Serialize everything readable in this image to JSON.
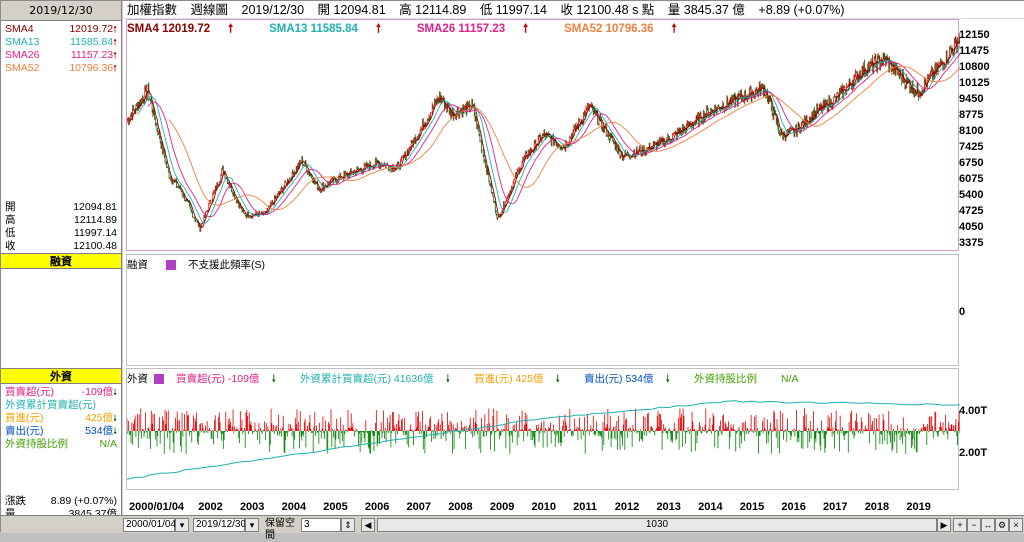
{
  "left_panel": {
    "date": "2019/12/30",
    "sma": [
      {
        "name": "SMA4",
        "value": "12019.72",
        "color": "#8b0000"
      },
      {
        "name": "SMA13",
        "value": "11585.84",
        "color": "#20b0b0"
      },
      {
        "name": "SMA26",
        "value": "11157.23",
        "color": "#e0208a"
      },
      {
        "name": "SMA52",
        "value": "10796.36",
        "color": "#f08040"
      }
    ],
    "ohlc": [
      {
        "label": "開",
        "value": "12094.81"
      },
      {
        "label": "高",
        "value": "12114.89"
      },
      {
        "label": "低",
        "value": "11997.14"
      },
      {
        "label": "收",
        "value": "12100.48"
      }
    ],
    "margin_title": "融資",
    "foreign_title": "外資",
    "foreign_rows": [
      {
        "label": "買賣超(元)",
        "value": "-109億",
        "color": "#e0208a",
        "dir": "dn"
      },
      {
        "label": "外資累計買賣超(元)",
        "value": "",
        "color": "#20b0b0",
        "dir": ""
      },
      {
        "label": "買進(元)",
        "value": "425億",
        "color": "#f0a000",
        "dir": "dn"
      },
      {
        "label": "賣出(元)",
        "value": "534億",
        "color": "#0050c0",
        "dir": "dn"
      },
      {
        "label": "外資持股比例",
        "value": "N/A",
        "color": "#40a000",
        "dir": ""
      }
    ],
    "change_label": "漲跌",
    "change_value": "8.89 (+0.07%)",
    "volume_label": "量",
    "volume_value": "3845.37億"
  },
  "topbar": {
    "index_name": "加權指數",
    "period": "週線圖",
    "date": "2019/12/30",
    "open": "開 12094.81",
    "high": "高 12114.89",
    "low": "低 11997.14",
    "close": "收 12100.48 s 點",
    "volume": "量 3845.37 億",
    "change": "+8.89 (+0.07%)"
  },
  "main_legend": [
    {
      "text": "SMA4 12019.72",
      "color": "#8b0000"
    },
    {
      "text": "SMA13 11585.84",
      "color": "#20b0b0"
    },
    {
      "text": "SMA26 11157.23",
      "color": "#e0208a"
    },
    {
      "text": "SMA52 10796.36",
      "color": "#f08040"
    }
  ],
  "price_ticks": [
    "12150",
    "11475",
    "10800",
    "10125",
    "9450",
    "8775",
    "8100",
    "7425",
    "6750",
    "6075",
    "5400",
    "4725",
    "4050",
    "3375"
  ],
  "margin_pane": {
    "label": "融資",
    "note": "不支援此頻率(S)",
    "zero": "0"
  },
  "foreign_pane": {
    "label": "外資",
    "items": [
      {
        "text": "買賣超(元) -109億",
        "color": "#e0208a",
        "dir": "dn"
      },
      {
        "text": "外資累計買賣超(元) 41636億",
        "color": "#20b0b0",
        "dir": "dn"
      },
      {
        "text": "買進(元) 425億",
        "color": "#f0a000",
        "dir": "dn"
      },
      {
        "text": "賣出(元) 534億",
        "color": "#0050c0",
        "dir": "dn"
      },
      {
        "text": "外資持股比例",
        "color": "#40a000",
        "dir": ""
      },
      {
        "text": "N/A",
        "color": "#40a000",
        "dir": ""
      }
    ],
    "ticks": [
      "4.00T",
      "2.00T"
    ]
  },
  "x_ticks": [
    "2000/01/04",
    "2002",
    "2003",
    "2004",
    "2005",
    "2006",
    "2007",
    "2008",
    "2009",
    "2010",
    "2011",
    "2012",
    "2013",
    "2014",
    "2015",
    "2016",
    "2017",
    "2018",
    "2019"
  ],
  "statusbar": {
    "start_date": "2000/01/04",
    "end_date": "2019/12/30",
    "keep_space": "保留空間",
    "keep_value": "3",
    "count": "1030"
  },
  "chart_data": {
    "type": "line",
    "title": "加權指數 週線圖",
    "x": [
      2000.0,
      2000.5,
      2001.0,
      2001.3,
      2001.75,
      2002.3,
      2002.8,
      2003.3,
      2004.2,
      2004.6,
      2005.0,
      2006.0,
      2006.5,
      2007.5,
      2007.8,
      2008.3,
      2008.9,
      2009.5,
      2010.0,
      2010.5,
      2011.1,
      2011.9,
      2012.5,
      2013.0,
      2014.0,
      2014.5,
      2015.3,
      2015.7,
      2016.0,
      2016.5,
      2017.0,
      2017.7,
      2018.2,
      2018.8,
      2019.0,
      2019.5,
      2019.99
    ],
    "series": [
      {
        "name": "SMA4",
        "values": [
          8500,
          9800,
          6200,
          5500,
          3900,
          6400,
          4500,
          4500,
          6800,
          5600,
          6000,
          6700,
          6500,
          9500,
          8800,
          9100,
          4300,
          6800,
          7900,
          7400,
          9100,
          7000,
          7300,
          7700,
          8900,
          9300,
          9900,
          7900,
          8000,
          8800,
          9400,
          10700,
          11100,
          10000,
          9700,
          10800,
          12020
        ]
      }
    ],
    "ylim": [
      3375,
      12150
    ]
  }
}
